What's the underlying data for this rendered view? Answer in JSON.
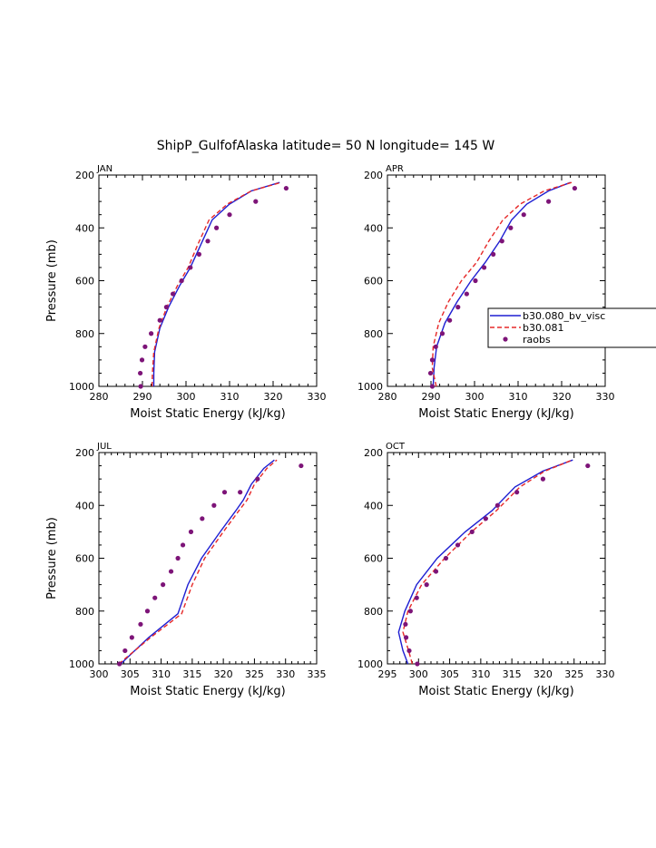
{
  "title": "ShipP_GulfofAlaska  latitude= 50 N longitude= 145 W",
  "legend": {
    "entries": [
      {
        "label": "b30.080_bv_visc",
        "style": "solid",
        "color": "#1e1ed2"
      },
      {
        "label": "b30.081",
        "style": "dashed",
        "color": "#e62828"
      },
      {
        "label": "raobs",
        "style": "dot",
        "color": "#7d1478"
      }
    ]
  },
  "chart_data": [
    {
      "type": "line",
      "panel": "JAN",
      "xlabel": "Moist Static Energy (kJ/kg)",
      "ylabel": "Pressure (mb)",
      "xlim": [
        280,
        330
      ],
      "ylim": [
        1000,
        200
      ],
      "xticks": [
        "280",
        "290",
        "300",
        "310",
        "320",
        "330"
      ],
      "yticks": [
        "200",
        "400",
        "600",
        "800",
        "1000"
      ],
      "series": [
        {
          "name": "b30.080_bv_visc",
          "x": [
            292.6,
            292.6,
            292.8,
            294,
            296,
            298.5,
            301,
            303.5,
            306,
            310,
            315,
            321.5
          ],
          "y": [
            1000,
            950,
            870,
            780,
            700,
            620,
            550,
            460,
            370,
            310,
            260,
            228
          ]
        },
        {
          "name": "b30.081",
          "x": [
            292.2,
            292.3,
            292.6,
            293.8,
            295.6,
            298,
            300.5,
            302.8,
            305.3,
            309.5,
            315,
            321.8
          ],
          "y": [
            1000,
            950,
            870,
            780,
            700,
            620,
            550,
            460,
            370,
            310,
            260,
            228
          ]
        },
        {
          "name": "raobs",
          "x": [
            289.6,
            289.5,
            289.9,
            290.6,
            292,
            294,
            295.5,
            297,
            299,
            301,
            303,
            305,
            307,
            310,
            316,
            323
          ],
          "y": [
            1000,
            950,
            900,
            850,
            800,
            750,
            700,
            650,
            600,
            550,
            500,
            450,
            400,
            350,
            300,
            250
          ]
        }
      ]
    },
    {
      "type": "line",
      "panel": "APR",
      "xlabel": "Moist Static Energy (kJ/kg)",
      "ylabel": "",
      "xlim": [
        280,
        330
      ],
      "ylim": [
        1000,
        200
      ],
      "xticks": [
        "280",
        "290",
        "300",
        "310",
        "320",
        "330"
      ],
      "yticks": [
        "200",
        "400",
        "600",
        "800",
        "1000"
      ],
      "series": [
        {
          "name": "b30.080_bv_visc",
          "x": [
            290.5,
            290.7,
            291.3,
            293.2,
            296,
            299.2,
            302.5,
            305.8,
            308.5,
            312,
            317,
            322
          ],
          "y": [
            1000,
            930,
            850,
            760,
            680,
            600,
            530,
            450,
            370,
            310,
            260,
            228
          ]
        },
        {
          "name": "b30.081",
          "x": [
            291.2,
            290.3,
            290.5,
            291.8,
            294,
            297,
            300.5,
            303.3,
            306.5,
            310.5,
            316,
            322.3
          ],
          "y": [
            1000,
            930,
            850,
            760,
            680,
            600,
            530,
            450,
            370,
            310,
            260,
            228
          ]
        },
        {
          "name": "raobs",
          "x": [
            290.3,
            289.9,
            290.3,
            291.1,
            292.6,
            294.3,
            296.2,
            298.2,
            300.2,
            302.2,
            304.3,
            306.3,
            308.3,
            311.3,
            317,
            323
          ],
          "y": [
            1000,
            950,
            900,
            850,
            800,
            750,
            700,
            650,
            600,
            550,
            500,
            450,
            400,
            350,
            300,
            250
          ]
        }
      ]
    },
    {
      "type": "line",
      "panel": "JUL",
      "xlabel": "Moist Static Energy (kJ/kg)",
      "ylabel": "Pressure (mb)",
      "xlim": [
        300,
        335
      ],
      "ylim": [
        1000,
        200
      ],
      "xticks": [
        "300",
        "305",
        "310",
        "315",
        "320",
        "325",
        "330",
        "335"
      ],
      "yticks": [
        "200",
        "400",
        "600",
        "800",
        "1000"
      ],
      "series": [
        {
          "name": "b30.080_bv_visc",
          "x": [
            303.5,
            308,
            312.7,
            314.3,
            316.5,
            319.5,
            322,
            323.2,
            324.5,
            326.5,
            328.2
          ],
          "y": [
            1000,
            900,
            810,
            700,
            600,
            500,
            420,
            380,
            320,
            260,
            228
          ]
        },
        {
          "name": "b30.081",
          "x": [
            303.2,
            308.3,
            313.3,
            315,
            317,
            320,
            322.5,
            323.8,
            325,
            327,
            328.6
          ],
          "y": [
            1000,
            900,
            810,
            700,
            600,
            500,
            420,
            380,
            320,
            260,
            228
          ]
        },
        {
          "name": "raobs",
          "x": [
            303.3,
            304.2,
            305.3,
            306.7,
            307.8,
            309,
            310.3,
            311.6,
            312.7,
            313.5,
            314.8,
            316.6,
            318.5,
            320.2,
            322.7,
            325.5,
            332.5
          ],
          "y": [
            1000,
            950,
            900,
            850,
            800,
            750,
            700,
            650,
            600,
            550,
            500,
            450,
            400,
            350,
            350,
            300,
            250
          ]
        }
      ]
    },
    {
      "type": "line",
      "panel": "OCT",
      "xlabel": "Moist Static Energy (kJ/kg)",
      "ylabel": "",
      "xlim": [
        295,
        330
      ],
      "ylim": [
        1000,
        200
      ],
      "xticks": [
        "295",
        "300",
        "305",
        "310",
        "315",
        "320",
        "325",
        "330"
      ],
      "yticks": [
        "200",
        "400",
        "600",
        "800",
        "1000"
      ],
      "series": [
        {
          "name": "b30.080_bv_visc",
          "x": [
            298.3,
            297.5,
            296.8,
            297.8,
            299.7,
            303,
            307.5,
            311.8,
            315.5,
            320,
            324.8
          ],
          "y": [
            1000,
            950,
            880,
            800,
            700,
            600,
            500,
            420,
            330,
            270,
            228
          ]
        },
        {
          "name": "b30.081",
          "x": [
            299,
            298.4,
            297.5,
            298.3,
            300.5,
            304.2,
            308.5,
            312.5,
            316.3,
            320.3,
            324.7
          ],
          "y": [
            1000,
            950,
            880,
            800,
            700,
            600,
            500,
            420,
            330,
            270,
            228
          ]
        },
        {
          "name": "raobs",
          "x": [
            299.8,
            298.5,
            298,
            297.9,
            298.7,
            299.7,
            301.3,
            302.8,
            304.4,
            306.3,
            308.6,
            310.8,
            312.7,
            315.8,
            320,
            327.2
          ],
          "y": [
            1000,
            950,
            900,
            850,
            800,
            750,
            700,
            650,
            600,
            550,
            500,
            450,
            400,
            350,
            300,
            250
          ]
        }
      ]
    }
  ]
}
